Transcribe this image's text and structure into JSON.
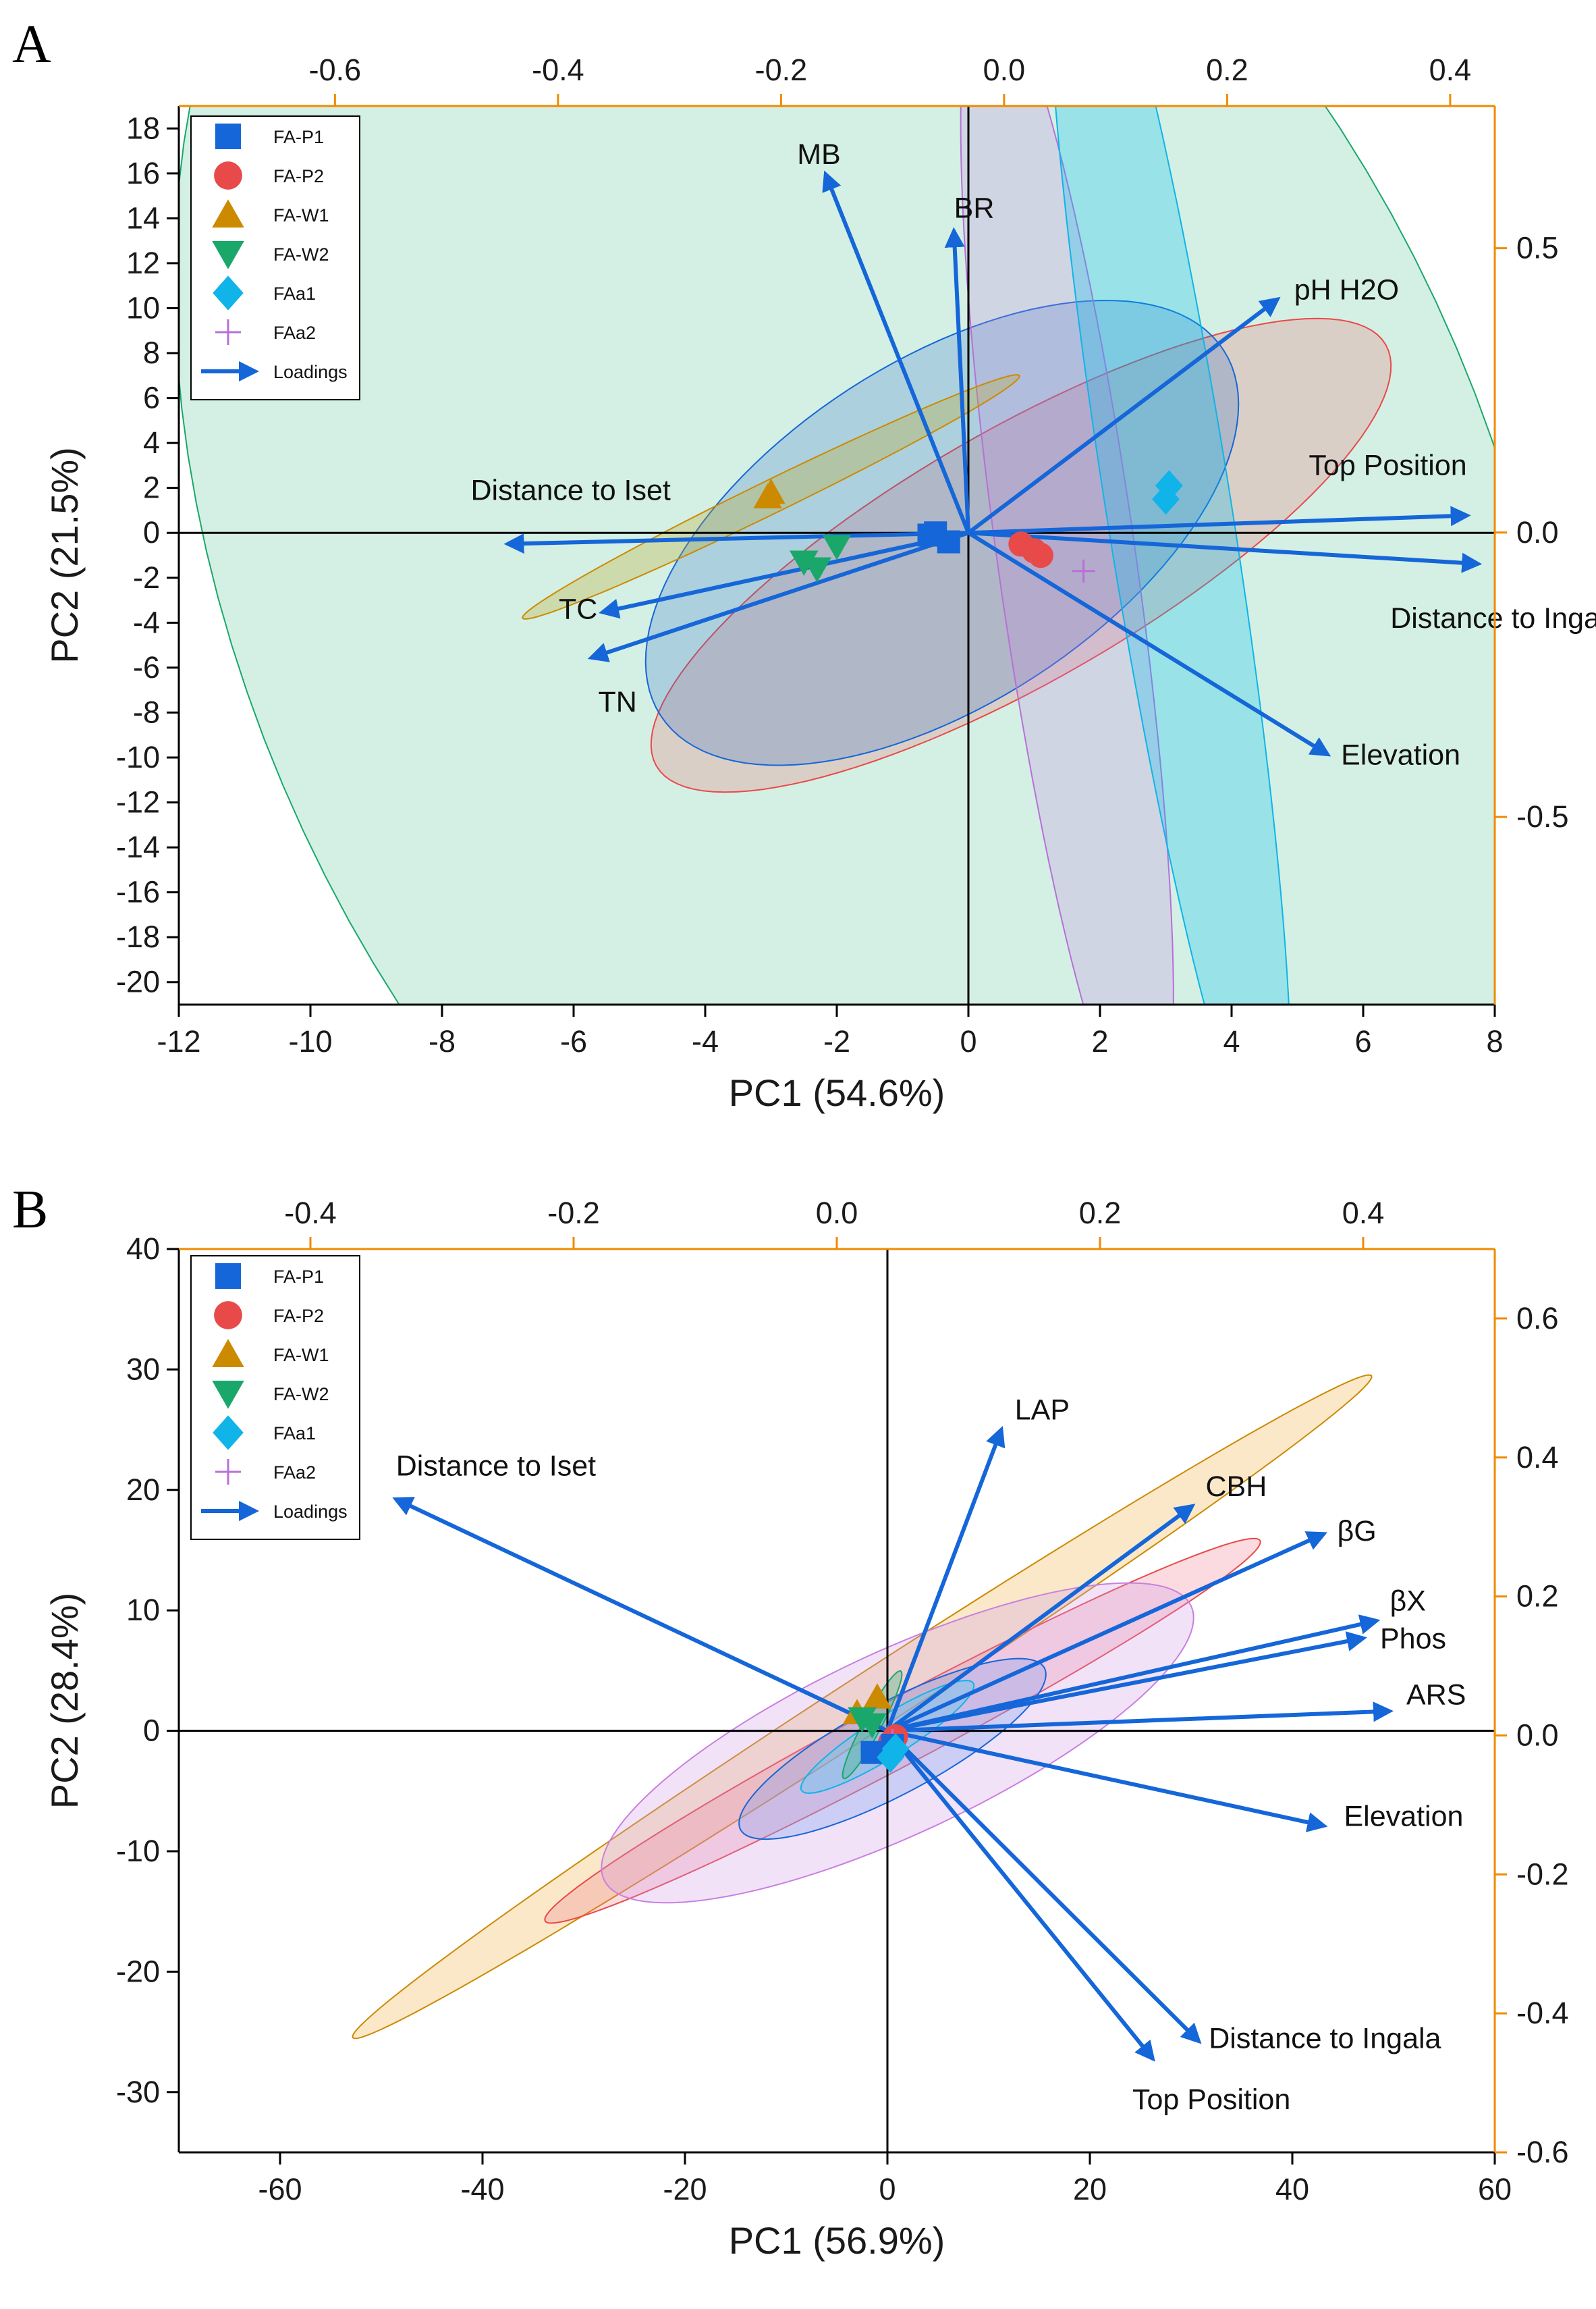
{
  "chart_data": [
    {
      "panel": "A",
      "type": "scatter",
      "xlabel": "PC1 (54.6%)",
      "ylabel": "PC2 (21.5%)",
      "xlim": [
        -12,
        8
      ],
      "ylim": [
        -21,
        19
      ],
      "xticks": [
        -12,
        -10,
        -8,
        -6,
        -4,
        -2,
        0,
        2,
        4,
        6,
        8
      ],
      "yticks": [
        -20,
        -18,
        -16,
        -14,
        -12,
        -10,
        -8,
        -6,
        -4,
        -2,
        0,
        2,
        4,
        6,
        8,
        10,
        12,
        14,
        16,
        18
      ],
      "top_axis": {
        "range": [
          -0.74,
          0.44
        ],
        "ticks": [
          -0.6,
          -0.4,
          -0.2,
          0.0,
          0.2,
          0.4
        ],
        "labels": [
          "-0.6",
          "-0.4",
          "-0.2",
          "0.0",
          "0.2",
          "0.4"
        ]
      },
      "right_axis": {
        "range": [
          -0.83,
          0.75
        ],
        "ticks": [
          -0.5,
          0.0,
          0.5
        ],
        "labels": [
          "-0.5",
          "0.0",
          "0.5"
        ]
      },
      "legend": [
        "FA-P1",
        "FA-P2",
        "FA-W1",
        "FA-W2",
        "FAa1",
        "FAa2",
        "Loadings"
      ],
      "groups": [
        {
          "name": "FA-W2",
          "color": "#1aa86a",
          "fill": "rgba(40,180,120,0.20)",
          "ellipse": {
            "cx": -1.5,
            "cy": -1.5,
            "rx": 9.5,
            "ry": 14.5,
            "angle": 25
          },
          "points": [
            [
              -2.5,
              -1.3
            ],
            [
              -2.0,
              -0.6
            ],
            [
              -2.3,
              -1.6
            ]
          ]
        },
        {
          "name": "FA-P2",
          "color": "#e84a4a",
          "fill": "rgba(240,90,90,0.22)",
          "ellipse": {
            "cx": 0.8,
            "cy": -1.0,
            "rx": 6.4,
            "ry": 1.9,
            "angle": 30
          },
          "points": [
            [
              0.8,
              -0.5
            ],
            [
              1.0,
              -0.8
            ],
            [
              1.1,
              -1.0
            ]
          ]
        },
        {
          "name": "FA-P1",
          "color": "#1566d8",
          "fill": "rgba(50,110,200,0.25)",
          "ellipse": {
            "cx": -0.4,
            "cy": 0.0,
            "rx": 5.1,
            "ry": 2.6,
            "angle": 33
          },
          "points": [
            [
              -0.5,
              0.0
            ],
            [
              -0.3,
              -0.4
            ],
            [
              -0.6,
              -0.1
            ]
          ]
        },
        {
          "name": "FAa2",
          "color": "#b870d8",
          "fill": "rgba(190,130,220,0.25)",
          "ellipse": {
            "cx": 1.5,
            "cy": -1.3,
            "rx": 1.05,
            "ry": 8.9,
            "angle": 8
          },
          "points": [
            [
              1.75,
              -1.7
            ]
          ]
        },
        {
          "name": "FAa1",
          "color": "#10b4e8",
          "fill": "rgba(0,190,240,0.28)",
          "ellipse": {
            "cx": 3.05,
            "cy": 1.0,
            "rx": 0.95,
            "ry": 10.2,
            "angle": 9
          },
          "points": [
            [
              3.05,
              2.1
            ],
            [
              3.0,
              1.5
            ]
          ]
        },
        {
          "name": "FA-W1",
          "color": "#cc8a00",
          "fill": "rgba(190,170,40,0.3)",
          "ellipse": {
            "cx": -3.0,
            "cy": 1.6,
            "rx": 4.2,
            "ry": 0.25,
            "angle": 26
          },
          "points": [
            [
              -3.05,
              1.6
            ],
            [
              -3.0,
              1.8
            ]
          ]
        }
      ],
      "loadings": [
        {
          "label": "MB",
          "pc1": -0.16,
          "pc2": 0.63
        },
        {
          "label": "BR",
          "pc1": -0.045,
          "pc2": 0.53
        },
        {
          "label": "pH H2O",
          "pc1": 0.245,
          "pc2": 0.41
        },
        {
          "label": "Top Position",
          "pc1": 0.415,
          "pc2": 0.03
        },
        {
          "label": "Distance to Iset",
          "pc1": -0.445,
          "pc2": -0.02
        },
        {
          "label": "Distance to Ingala",
          "pc1": 0.425,
          "pc2": -0.055
        },
        {
          "label": "TC",
          "pc1": -0.36,
          "pc2": -0.14
        },
        {
          "label": "TN",
          "pc1": -0.37,
          "pc2": -0.22
        },
        {
          "label": "Elevation",
          "pc1": 0.29,
          "pc2": -0.39
        }
      ]
    },
    {
      "panel": "B",
      "type": "scatter",
      "xlabel": "PC1 (56.9%)",
      "ylabel": "PC2 (28.4%)",
      "xlim": [
        -70,
        60
      ],
      "ylim": [
        -35,
        40
      ],
      "xticks": [
        -60,
        -40,
        -20,
        0,
        20,
        40,
        60
      ],
      "yticks": [
        -30,
        -20,
        -10,
        0,
        10,
        20,
        30,
        40
      ],
      "top_axis": {
        "range": [
          -0.5,
          0.5
        ],
        "ticks": [
          -0.4,
          -0.2,
          0.0,
          0.2,
          0.4
        ],
        "labels": [
          "-0.4",
          "-0.2",
          "0.0",
          "0.2",
          "0.4"
        ]
      },
      "right_axis": {
        "range": [
          -0.6,
          0.7
        ],
        "ticks": [
          -0.6,
          -0.4,
          -0.2,
          0.0,
          0.2,
          0.4,
          0.6
        ],
        "labels": [
          "-0.6",
          "-0.4",
          "-0.2",
          "0.0",
          "0.2",
          "0.4",
          "0.6"
        ]
      },
      "legend": [
        "FA-P1",
        "FA-P2",
        "FA-W1",
        "FA-W2",
        "FAa1",
        "FAa2",
        "Loadings"
      ],
      "groups": [
        {
          "name": "FA-W1",
          "color": "#cc8a00",
          "fill": "rgba(240,190,100,0.35)",
          "ellipse": {
            "cx": -2.5,
            "cy": 2.0,
            "rx": 60.0,
            "ry": 2.8,
            "angle": 33
          },
          "points": [
            [
              -3.0,
              1.5
            ],
            [
              -1.0,
              2.8
            ]
          ]
        },
        {
          "name": "FA-P2",
          "color": "#e84a4a",
          "fill": "rgba(240,110,130,0.25)",
          "ellipse": {
            "cx": 1.5,
            "cy": 0.0,
            "rx": 40.0,
            "ry": 3.2,
            "angle": 28
          },
          "points": [
            [
              0.3,
              -1.0
            ],
            [
              0.8,
              -0.5
            ]
          ]
        },
        {
          "name": "FAa2",
          "color": "#c880e0",
          "fill": "rgba(210,150,230,0.28)",
          "ellipse": {
            "cx": 1.0,
            "cy": -1.0,
            "rx": 32.0,
            "ry": 9.0,
            "angle": 25
          },
          "points": [
            [
              0.5,
              -0.8
            ]
          ]
        },
        {
          "name": "FA-P1",
          "color": "#1566d8",
          "fill": "rgba(120,160,240,0.30)",
          "ellipse": {
            "cx": 0.5,
            "cy": -1.5,
            "rx": 17.0,
            "ry": 4.5,
            "angle": 28
          },
          "points": [
            [
              -1.5,
              -1.8
            ],
            [
              0.5,
              -1.2
            ]
          ]
        },
        {
          "name": "FAa1",
          "color": "#10b4e8",
          "fill": "rgba(80,200,240,0.35)",
          "ellipse": {
            "cx": 0.0,
            "cy": -0.5,
            "rx": 10.0,
            "ry": 2.0,
            "angle": 32
          },
          "points": [
            [
              0.3,
              -2.2
            ],
            [
              0.8,
              -1.5
            ]
          ]
        },
        {
          "name": "FA-W2",
          "color": "#1aa86a",
          "fill": "rgba(40,180,120,0.30)",
          "ellipse": {
            "cx": -1.5,
            "cy": 0.5,
            "rx": 6.0,
            "ry": 0.9,
            "angle": 62
          },
          "points": [
            [
              -2.5,
              1.0
            ],
            [
              -1.5,
              0.5
            ]
          ]
        }
      ],
      "loadings": [
        {
          "label": "Distance to Iset",
          "pc1": -0.335,
          "pc2": 0.34
        },
        {
          "label": "LAP",
          "pc1": 0.125,
          "pc2": 0.44
        },
        {
          "label": "CBH",
          "pc1": 0.27,
          "pc2": 0.33
        },
        {
          "label": "βG",
          "pc1": 0.37,
          "pc2": 0.29
        },
        {
          "label": "βX",
          "pc1": 0.41,
          "pc2": 0.165
        },
        {
          "label": "Phos",
          "pc1": 0.4,
          "pc2": 0.14
        },
        {
          "label": "ARS",
          "pc1": 0.42,
          "pc2": 0.035
        },
        {
          "label": "Elevation",
          "pc1": 0.37,
          "pc2": -0.13
        },
        {
          "label": "Distance to Ingala",
          "pc1": 0.275,
          "pc2": -0.44
        },
        {
          "label": "Top Position",
          "pc1": 0.24,
          "pc2": -0.465
        }
      ]
    }
  ]
}
